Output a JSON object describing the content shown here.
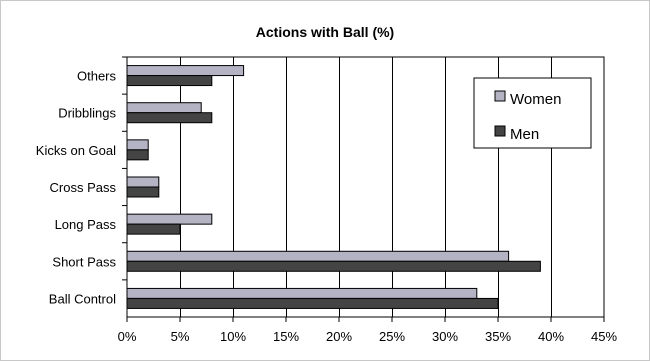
{
  "chart_data": {
    "type": "bar",
    "orientation": "horizontal",
    "title": "Actions with Ball (%)",
    "xlabel": "",
    "ylabel": "",
    "categories": [
      "Others",
      "Dribblings",
      "Kicks on Goal",
      "Cross Pass",
      "Long Pass",
      "Short Pass",
      "Ball Control"
    ],
    "series": [
      {
        "name": "Women",
        "color": "#b3b3c4",
        "values": [
          11,
          7,
          2,
          3,
          8,
          36,
          33
        ]
      },
      {
        "name": "Men",
        "color": "#444444",
        "values": [
          8,
          8,
          2,
          3,
          5,
          39,
          35
        ]
      }
    ],
    "xlim": [
      0,
      45
    ],
    "xticks": [
      0,
      5,
      10,
      15,
      20,
      25,
      30,
      35,
      40,
      45
    ],
    "xtick_labels": [
      "0%",
      "5%",
      "10%",
      "15%",
      "20%",
      "25%",
      "30%",
      "35%",
      "40%",
      "45%"
    ],
    "grid": "vertical",
    "legend_position": "right"
  }
}
